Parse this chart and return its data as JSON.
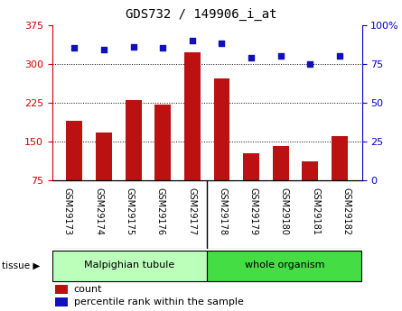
{
  "title": "GDS732 / 149906_i_at",
  "categories": [
    "GSM29173",
    "GSM29174",
    "GSM29175",
    "GSM29176",
    "GSM29177",
    "GSM29178",
    "GSM29179",
    "GSM29180",
    "GSM29181",
    "GSM29182"
  ],
  "counts": [
    190,
    168,
    230,
    222,
    322,
    272,
    128,
    142,
    112,
    160
  ],
  "percentile": [
    85,
    84,
    86,
    85,
    90,
    88,
    79,
    80,
    75,
    80
  ],
  "ylim_left": [
    75,
    375
  ],
  "ylim_right": [
    0,
    100
  ],
  "yticks_left": [
    75,
    150,
    225,
    300,
    375
  ],
  "yticks_right": [
    0,
    25,
    50,
    75,
    100
  ],
  "bar_color": "#bb1111",
  "dot_color": "#1111bb",
  "tissue_groups": [
    {
      "label": "Malpighian tubule",
      "indices": [
        0,
        1,
        2,
        3,
        4
      ],
      "color": "#bbffbb"
    },
    {
      "label": "whole organism",
      "indices": [
        5,
        6,
        7,
        8,
        9
      ],
      "color": "#44dd44"
    }
  ],
  "tissue_label": "tissue",
  "legend_count_label": "count",
  "legend_percentile_label": "percentile rank within the sample",
  "left_axis_color": "#cc0000",
  "right_axis_color": "#0000cc",
  "tick_label_bg": "#cccccc",
  "fig_bg": "#ffffff",
  "grid_color": "#000000",
  "border_color": "#000000"
}
